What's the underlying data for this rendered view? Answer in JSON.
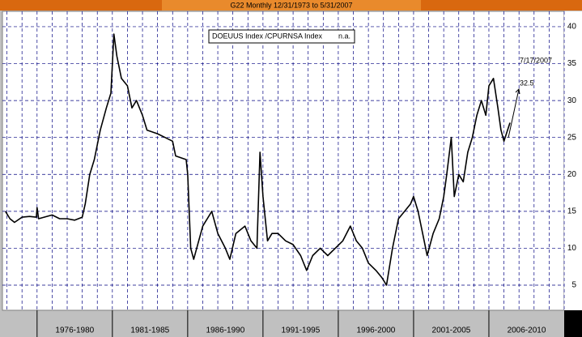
{
  "chart_data": {
    "type": "line",
    "title": "G22 Monthly 12/31/1973 to 5/31/2007",
    "x": [
      1973.9,
      1974.2,
      1974.5,
      1975.0,
      1975.5,
      1975.95,
      1976.0,
      1976.1,
      1977.0,
      1977.5,
      1978.0,
      1978.5,
      1979.0,
      1979.2,
      1979.5,
      1979.8,
      1980.2,
      1980.6,
      1980.9,
      1981.1,
      1981.3,
      1981.6,
      1982.0,
      1982.3,
      1982.6,
      1983.0,
      1983.3,
      1984.0,
      1984.5,
      1985.0,
      1985.2,
      1985.9,
      1986.0,
      1986.2,
      1986.4,
      1986.6,
      1987.0,
      1987.6,
      1988.0,
      1988.5,
      1988.8,
      1989.2,
      1989.8,
      1990.2,
      1990.6,
      1990.8,
      1991.0,
      1991.3,
      1991.6,
      1992.0,
      1992.5,
      1993.0,
      1993.5,
      1993.9,
      1994.3,
      1994.8,
      1995.3,
      1995.8,
      1996.3,
      1996.8,
      1997.2,
      1997.6,
      1998.0,
      1998.5,
      1998.9,
      1999.2,
      1999.6,
      2000.0,
      2000.4,
      2000.8,
      2001.0,
      2001.3,
      2001.7,
      2001.9,
      2002.3,
      2002.7,
      2003.0,
      2003.2,
      2003.5,
      2003.7,
      2004.0,
      2004.3,
      2004.6,
      2004.9,
      2005.2,
      2005.5,
      2005.8,
      2006.0,
      2006.3,
      2006.6,
      2006.8,
      2007.0,
      2007.4
    ],
    "series": [
      {
        "name": "DOEUUS Index /CPURNSA Index",
        "color": "#000000",
        "values": [
          15,
          14,
          13.5,
          14.2,
          14.3,
          14.2,
          15.5,
          14,
          14.5,
          14,
          14,
          13.8,
          14.2,
          16,
          20,
          22,
          26,
          29,
          31,
          39,
          36,
          33,
          32,
          29,
          30,
          28,
          26,
          25.5,
          25,
          24.5,
          22.5,
          22,
          20,
          10,
          8.5,
          10,
          13,
          15,
          12,
          10,
          8.5,
          12,
          13,
          11,
          10,
          23,
          17,
          11,
          12,
          12,
          11,
          10.5,
          9,
          7,
          9,
          10,
          9,
          10,
          11,
          13,
          11,
          10,
          8,
          7,
          6,
          5,
          10,
          14,
          15,
          16,
          17,
          15,
          11,
          9,
          12,
          14,
          17,
          20,
          25,
          17,
          20,
          19,
          23,
          25,
          28,
          30,
          28,
          32,
          33,
          29,
          26,
          24.5,
          27
        ]
      }
    ],
    "legend_value": "n.a.",
    "annotations": [
      "7/17/2007",
      "32.5"
    ],
    "xlim": [
      1973.7,
      2011
    ],
    "xticks": [
      1974,
      1975,
      1976,
      1977,
      1978,
      1979,
      1980,
      1981,
      1982,
      1983,
      1984,
      1985,
      1986,
      1987,
      1988,
      1989,
      1990,
      1991,
      1992,
      1993,
      1994,
      1995,
      1996,
      1997,
      1998,
      1999,
      2000,
      2001,
      2002,
      2003,
      2004,
      2005,
      2006,
      2007,
      2008,
      2009,
      2010,
      2011
    ],
    "periods": [
      {
        "start": 1976,
        "end": 1981,
        "label": "1976-1980"
      },
      {
        "start": 1981,
        "end": 1986,
        "label": "1981-1985"
      },
      {
        "start": 1986,
        "end": 1991,
        "label": "1986-1990"
      },
      {
        "start": 1991,
        "end": 1996,
        "label": "1991-1995"
      },
      {
        "start": 1996,
        "end": 2001,
        "label": "1996-2000"
      },
      {
        "start": 2001,
        "end": 2006,
        "label": "2001-2005"
      },
      {
        "start": 2006,
        "end": 2011,
        "label": "2006-2010"
      }
    ],
    "ylim": [
      1.6,
      42.08
    ],
    "yticks": [
      5,
      10,
      15,
      20,
      25,
      30,
      35,
      40
    ],
    "grid": true
  }
}
